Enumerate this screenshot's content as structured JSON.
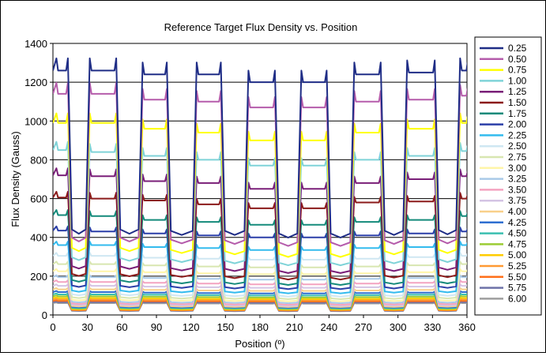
{
  "chart_data": {
    "type": "line",
    "title": "Reference Target Flux Density vs. Position",
    "xlabel": "Position (º)",
    "ylabel": "Flux Density (Gauss)",
    "xlim": [
      0,
      360
    ],
    "ylim": [
      0,
      1400
    ],
    "x_ticks": [
      0,
      30,
      60,
      90,
      120,
      150,
      180,
      210,
      240,
      270,
      300,
      330,
      360
    ],
    "y_ticks": [
      0,
      200,
      400,
      600,
      800,
      1000,
      1200,
      1400
    ],
    "x_tick_labels": [
      "0",
      "30",
      "60",
      "90",
      "120",
      "150",
      "180",
      "210",
      "240",
      "270",
      "300",
      "330",
      "360"
    ],
    "y_tick_labels": [
      "0",
      "200",
      "400",
      "600",
      "800",
      "1000",
      "1200",
      "1400"
    ],
    "grid": "horizontal",
    "legend_position": "right",
    "teeth": [
      {
        "rise": 3,
        "fall": 13
      },
      {
        "rise": 32,
        "fall": 55
      },
      {
        "rise": 78,
        "fall": 99
      },
      {
        "rise": 125,
        "fall": 146
      },
      {
        "rise": 170,
        "fall": 193
      },
      {
        "rise": 216,
        "fall": 238
      },
      {
        "rise": 262,
        "fall": 285
      },
      {
        "rise": 308,
        "fall": 332
      },
      {
        "rise": 354,
        "fall": 361
      }
    ],
    "gap_scale": 0.35,
    "series": [
      {
        "name": "0.25",
        "color": "#1f2d86",
        "plateau": [
          1260,
          1260,
          1240,
          1240,
          1200,
          1200,
          1240,
          1250,
          1260
        ]
      },
      {
        "name": "0.50",
        "color": "#b55cab",
        "plateau": [
          1140,
          1140,
          1110,
          1100,
          1070,
          1070,
          1100,
          1110,
          1130
        ]
      },
      {
        "name": "0.75",
        "color": "#ffff00",
        "plateau": [
          990,
          990,
          960,
          940,
          900,
          900,
          940,
          960,
          990
        ]
      },
      {
        "name": "1.00",
        "color": "#7fd3d8",
        "plateau": [
          850,
          840,
          820,
          800,
          770,
          770,
          800,
          820,
          845
        ]
      },
      {
        "name": "1.25",
        "color": "#7a1f78",
        "plateau": [
          720,
          715,
          690,
          680,
          650,
          650,
          680,
          700,
          715
        ]
      },
      {
        "name": "1.50",
        "color": "#8b1a1a",
        "plateau": [
          605,
          600,
          590,
          570,
          550,
          550,
          580,
          585,
          600
        ]
      },
      {
        "name": "1.75",
        "color": "#138a7a",
        "plateau": [
          515,
          510,
          490,
          480,
          465,
          465,
          480,
          490,
          510
        ]
      },
      {
        "name": "2.00",
        "color": "#2b3fa8",
        "plateau": [
          435,
          430,
          420,
          410,
          400,
          400,
          410,
          420,
          430
        ]
      },
      {
        "name": "2.25",
        "color": "#33bbee",
        "plateau": [
          360,
          360,
          350,
          345,
          335,
          335,
          345,
          350,
          360
        ]
      },
      {
        "name": "2.50",
        "color": "#cfe7f2",
        "plateau": [
          305,
          305,
          295,
          290,
          285,
          285,
          290,
          298,
          305
        ]
      },
      {
        "name": "2.75",
        "color": "#d8e6b0",
        "plateau": [
          262,
          262,
          255,
          250,
          245,
          245,
          250,
          256,
          262
        ]
      },
      {
        "name": "3.00",
        "color": "#fff5a8",
        "plateau": [
          225,
          225,
          220,
          215,
          210,
          210,
          215,
          220,
          225
        ]
      },
      {
        "name": "3.25",
        "color": "#a9c9e8",
        "plateau": [
          195,
          195,
          190,
          186,
          182,
          182,
          186,
          190,
          195
        ]
      },
      {
        "name": "3.50",
        "color": "#f4a3c0",
        "plateau": [
          170,
          170,
          166,
          162,
          158,
          158,
          162,
          166,
          170
        ]
      },
      {
        "name": "3.75",
        "color": "#d4c4e4",
        "plateau": [
          150,
          150,
          146,
          143,
          140,
          140,
          143,
          146,
          150
        ]
      },
      {
        "name": "4.00",
        "color": "#f9d08a",
        "plateau": [
          132,
          132,
          129,
          126,
          124,
          124,
          126,
          129,
          132
        ]
      },
      {
        "name": "4.25",
        "color": "#2f6fd0",
        "plateau": [
          118,
          118,
          115,
          113,
          111,
          111,
          113,
          115,
          118
        ]
      },
      {
        "name": "4.50",
        "color": "#3bbfb0",
        "plateau": [
          106,
          106,
          104,
          102,
          100,
          100,
          102,
          104,
          106
        ]
      },
      {
        "name": "4.75",
        "color": "#9bcc33",
        "plateau": [
          96,
          96,
          94,
          92,
          90,
          90,
          92,
          94,
          96
        ]
      },
      {
        "name": "5.00",
        "color": "#ffcc00",
        "plateau": [
          87,
          87,
          85,
          83,
          82,
          82,
          83,
          85,
          87
        ]
      },
      {
        "name": "5.25",
        "color": "#ff9933",
        "plateau": [
          79,
          79,
          77,
          76,
          75,
          75,
          76,
          77,
          79
        ]
      },
      {
        "name": "5.50",
        "color": "#ff6f1a",
        "plateau": [
          72,
          72,
          71,
          70,
          69,
          69,
          70,
          71,
          72
        ]
      },
      {
        "name": "5.75",
        "color": "#6d72a8",
        "plateau": [
          66,
          66,
          65,
          64,
          63,
          63,
          64,
          65,
          66
        ]
      },
      {
        "name": "6.00",
        "color": "#9e9e9e",
        "plateau": [
          61,
          61,
          60,
          59,
          58,
          58,
          59,
          60,
          61
        ]
      }
    ]
  }
}
